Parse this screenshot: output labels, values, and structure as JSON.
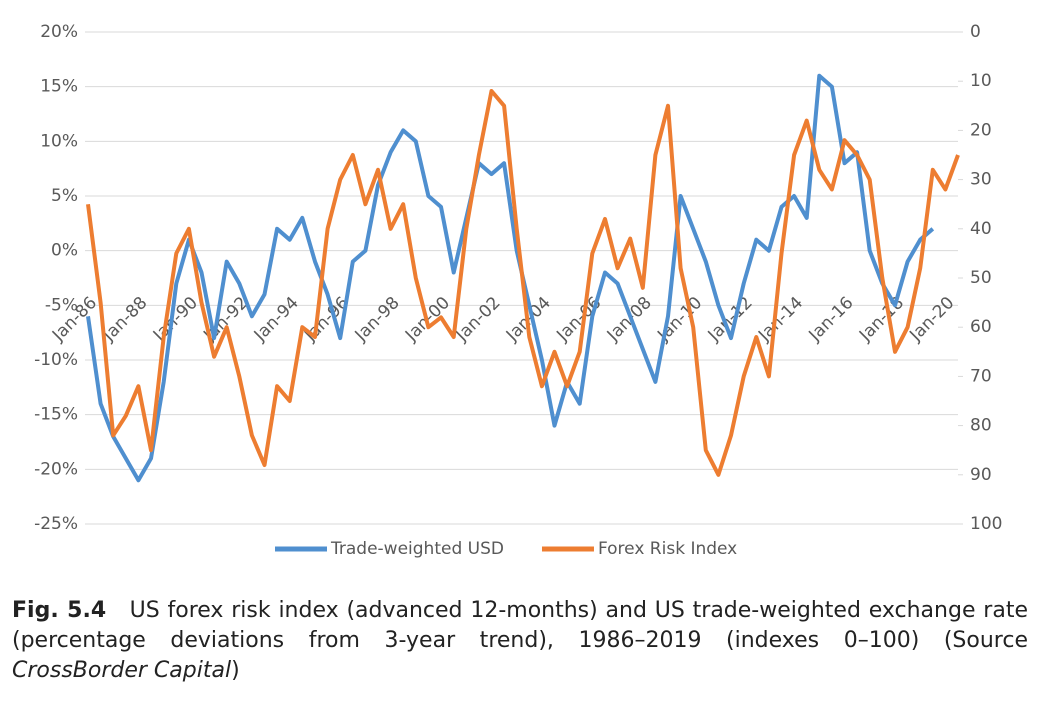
{
  "chart_data": {
    "type": "line",
    "categories": [
      "Jan-86",
      null,
      null,
      null,
      "Jan-88",
      null,
      null,
      null,
      "Jan-90",
      null,
      null,
      null,
      "Jan-92",
      null,
      null,
      null,
      "Jan-94",
      null,
      null,
      null,
      "Jan-96",
      null,
      null,
      null,
      "Jan-98",
      null,
      null,
      null,
      "Jan-00",
      null,
      null,
      null,
      "Jan-02",
      null,
      null,
      null,
      "Jan-04",
      null,
      null,
      null,
      "Jan-06",
      null,
      null,
      null,
      "Jan-08",
      null,
      null,
      null,
      "Jan-10",
      null,
      null,
      null,
      "Jan-12",
      null,
      null,
      null,
      "Jan-14",
      null,
      null,
      null,
      "Jan-16",
      null,
      null,
      null,
      "Jan-18",
      null,
      null,
      null,
      "Jan-20",
      null
    ],
    "series": [
      {
        "name": "Trade-weighted USD",
        "color": "#4f8fcf",
        "values": [
          -6,
          -14,
          -17,
          -19,
          -21,
          -19,
          -12,
          -3,
          1,
          -2,
          -8,
          -1,
          -3,
          -6,
          -4,
          2,
          1,
          3,
          -1,
          -4,
          -8,
          -1,
          0,
          6,
          9,
          11,
          10,
          5,
          4,
          -2,
          3,
          8,
          7,
          8,
          0,
          -5,
          -10,
          -16,
          -12,
          -14,
          -6,
          -2,
          -3,
          -6,
          -9,
          -12,
          -6,
          5,
          2,
          -1,
          -5,
          -8,
          -3,
          1,
          0,
          4,
          5,
          3,
          16,
          15,
          8,
          9,
          0,
          -3,
          -5,
          -1,
          1,
          2,
          null,
          null
        ]
      },
      {
        "name": "Forex Risk Index",
        "color": "#ed7d31",
        "axis": "y2",
        "values": [
          35,
          55,
          82,
          78,
          72,
          85,
          62,
          45,
          40,
          55,
          66,
          60,
          70,
          82,
          88,
          72,
          75,
          60,
          62,
          40,
          30,
          25,
          35,
          28,
          40,
          35,
          50,
          60,
          58,
          62,
          40,
          25,
          12,
          15,
          40,
          62,
          72,
          65,
          72,
          65,
          45,
          38,
          48,
          42,
          52,
          25,
          15,
          48,
          60,
          85,
          90,
          82,
          70,
          62,
          70,
          45,
          25,
          18,
          28,
          32,
          22,
          25,
          30,
          50,
          65,
          60,
          48,
          28,
          32,
          25
        ]
      }
    ],
    "ylim": [
      -25,
      20
    ],
    "yticks": [
      {
        "value": -25,
        "label": "-25%"
      },
      {
        "value": -20,
        "label": "-20%"
      },
      {
        "value": -15,
        "label": "-15%"
      },
      {
        "value": -10,
        "label": "-10%"
      },
      {
        "value": -5,
        "label": "-5%"
      },
      {
        "value": 0,
        "label": "0%"
      },
      {
        "value": 5,
        "label": "5%"
      },
      {
        "value": 10,
        "label": "10%"
      },
      {
        "value": 15,
        "label": "15%"
      },
      {
        "value": 20,
        "label": "20%"
      }
    ],
    "y2lim": [
      100,
      0
    ],
    "y2ticks": [
      100,
      90,
      80,
      70,
      60,
      50,
      40,
      30,
      20,
      10,
      0
    ],
    "grid": true,
    "legend": "bottom"
  },
  "caption": {
    "label": "Fig. 5.4",
    "text": "US forex risk index (advanced 12-months) and US trade-weighted exchange rate (percentage deviations from 3-year trend), 1986–2019 (indexes 0–100) (Source",
    "source": "CrossBorder Capital",
    "end": ")"
  }
}
